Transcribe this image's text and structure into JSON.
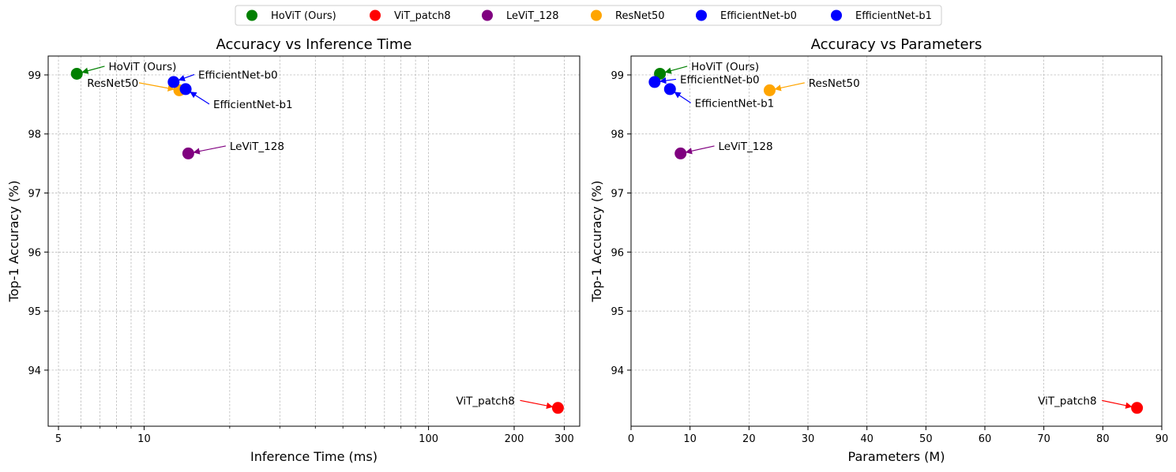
{
  "legend": {
    "placement": "top-center",
    "entries": [
      {
        "label": "HoViT (Ours)",
        "color": "#008000"
      },
      {
        "label": "ViT_patch8",
        "color": "#ff0000"
      },
      {
        "label": "LeViT_128",
        "color": "#800080"
      },
      {
        "label": "ResNet50",
        "color": "#ffa500"
      },
      {
        "label": "EfficientNet-b0",
        "color": "#0000ff"
      },
      {
        "label": "EfficientNet-b1",
        "color": "#0000ff"
      }
    ]
  },
  "chart_data": [
    {
      "type": "scatter",
      "title": "Accuracy vs Inference Time",
      "xlabel": "Inference Time (ms)",
      "ylabel": "Top-1 Accuracy (%)",
      "xscale": "log",
      "xlim": [
        4.6,
        340
      ],
      "ylim": [
        93.05,
        99.32
      ],
      "grid": "both",
      "xticks": [
        {
          "value": 5,
          "label": "5"
        },
        {
          "value": 10,
          "label": "10"
        },
        {
          "value": 100,
          "label": "100"
        },
        {
          "value": 200,
          "label": "200"
        },
        {
          "value": 300,
          "label": "300"
        }
      ],
      "xminor": [
        6,
        7,
        8,
        9,
        20,
        30,
        40,
        50,
        60,
        70,
        80,
        90
      ],
      "yticks": [
        {
          "value": 94,
          "label": "94"
        },
        {
          "value": 95,
          "label": "95"
        },
        {
          "value": 96,
          "label": "96"
        },
        {
          "value": 97,
          "label": "97"
        },
        {
          "value": 98,
          "label": "98"
        },
        {
          "value": 99,
          "label": "99"
        }
      ],
      "points": [
        {
          "name": "HoViT (Ours)",
          "x": 5.8,
          "y": 99.02,
          "color": "#008000",
          "label_x": 7.5,
          "label_y": 99.08,
          "anchor": "start"
        },
        {
          "name": "ViT_patch8",
          "x": 285,
          "y": 93.36,
          "color": "#ff0000",
          "label_x": 125,
          "label_y": 93.42,
          "anchor": "start"
        },
        {
          "name": "LeViT_128",
          "x": 14.3,
          "y": 97.67,
          "color": "#800080",
          "label_x": 20,
          "label_y": 97.73,
          "anchor": "start"
        },
        {
          "name": "ResNet50",
          "x": 13.3,
          "y": 98.74,
          "color": "#ffa500",
          "label_x": 6.3,
          "label_y": 98.8,
          "anchor": "start"
        },
        {
          "name": "EfficientNet-b0",
          "x": 12.7,
          "y": 98.88,
          "color": "#0000ff",
          "label_x": 15.5,
          "label_y": 98.94,
          "anchor": "start"
        },
        {
          "name": "EfficientNet-b1",
          "x": 14.0,
          "y": 98.76,
          "color": "#0000ff",
          "label_x": 17.5,
          "label_y": 98.44,
          "anchor": "start"
        }
      ]
    },
    {
      "type": "scatter",
      "title": "Accuracy vs Parameters",
      "xlabel": "Parameters (M)",
      "ylabel": "Top-1 Accuracy (%)",
      "xscale": "linear",
      "xlim": [
        0,
        90
      ],
      "ylim": [
        93.05,
        99.32
      ],
      "grid": "both",
      "xticks": [
        {
          "value": 0,
          "label": "0"
        },
        {
          "value": 10,
          "label": "10"
        },
        {
          "value": 20,
          "label": "20"
        },
        {
          "value": 30,
          "label": "30"
        },
        {
          "value": 40,
          "label": "40"
        },
        {
          "value": 50,
          "label": "50"
        },
        {
          "value": 60,
          "label": "60"
        },
        {
          "value": 70,
          "label": "70"
        },
        {
          "value": 80,
          "label": "80"
        },
        {
          "value": 90,
          "label": "90"
        }
      ],
      "xminor": [],
      "yticks": [
        {
          "value": 94,
          "label": "94"
        },
        {
          "value": 95,
          "label": "95"
        },
        {
          "value": 96,
          "label": "96"
        },
        {
          "value": 97,
          "label": "97"
        },
        {
          "value": 98,
          "label": "98"
        },
        {
          "value": 99,
          "label": "99"
        }
      ],
      "points": [
        {
          "name": "HoViT (Ours)",
          "x": 4.9,
          "y": 99.02,
          "color": "#008000",
          "label_x": 10.2,
          "label_y": 99.08,
          "anchor": "start"
        },
        {
          "name": "ViT_patch8",
          "x": 85.8,
          "y": 93.36,
          "color": "#ff0000",
          "label_x": 69.0,
          "label_y": 93.42,
          "anchor": "start"
        },
        {
          "name": "LeViT_128",
          "x": 8.4,
          "y": 97.67,
          "color": "#800080",
          "label_x": 14.8,
          "label_y": 97.73,
          "anchor": "start"
        },
        {
          "name": "ResNet50",
          "x": 23.5,
          "y": 98.74,
          "color": "#ffa500",
          "label_x": 30.1,
          "label_y": 98.8,
          "anchor": "start"
        },
        {
          "name": "EfficientNet-b0",
          "x": 4.0,
          "y": 98.88,
          "color": "#0000ff",
          "label_x": 8.3,
          "label_y": 98.86,
          "anchor": "start"
        },
        {
          "name": "EfficientNet-b1",
          "x": 6.6,
          "y": 98.76,
          "color": "#0000ff",
          "label_x": 10.8,
          "label_y": 98.46,
          "anchor": "start"
        }
      ]
    }
  ]
}
